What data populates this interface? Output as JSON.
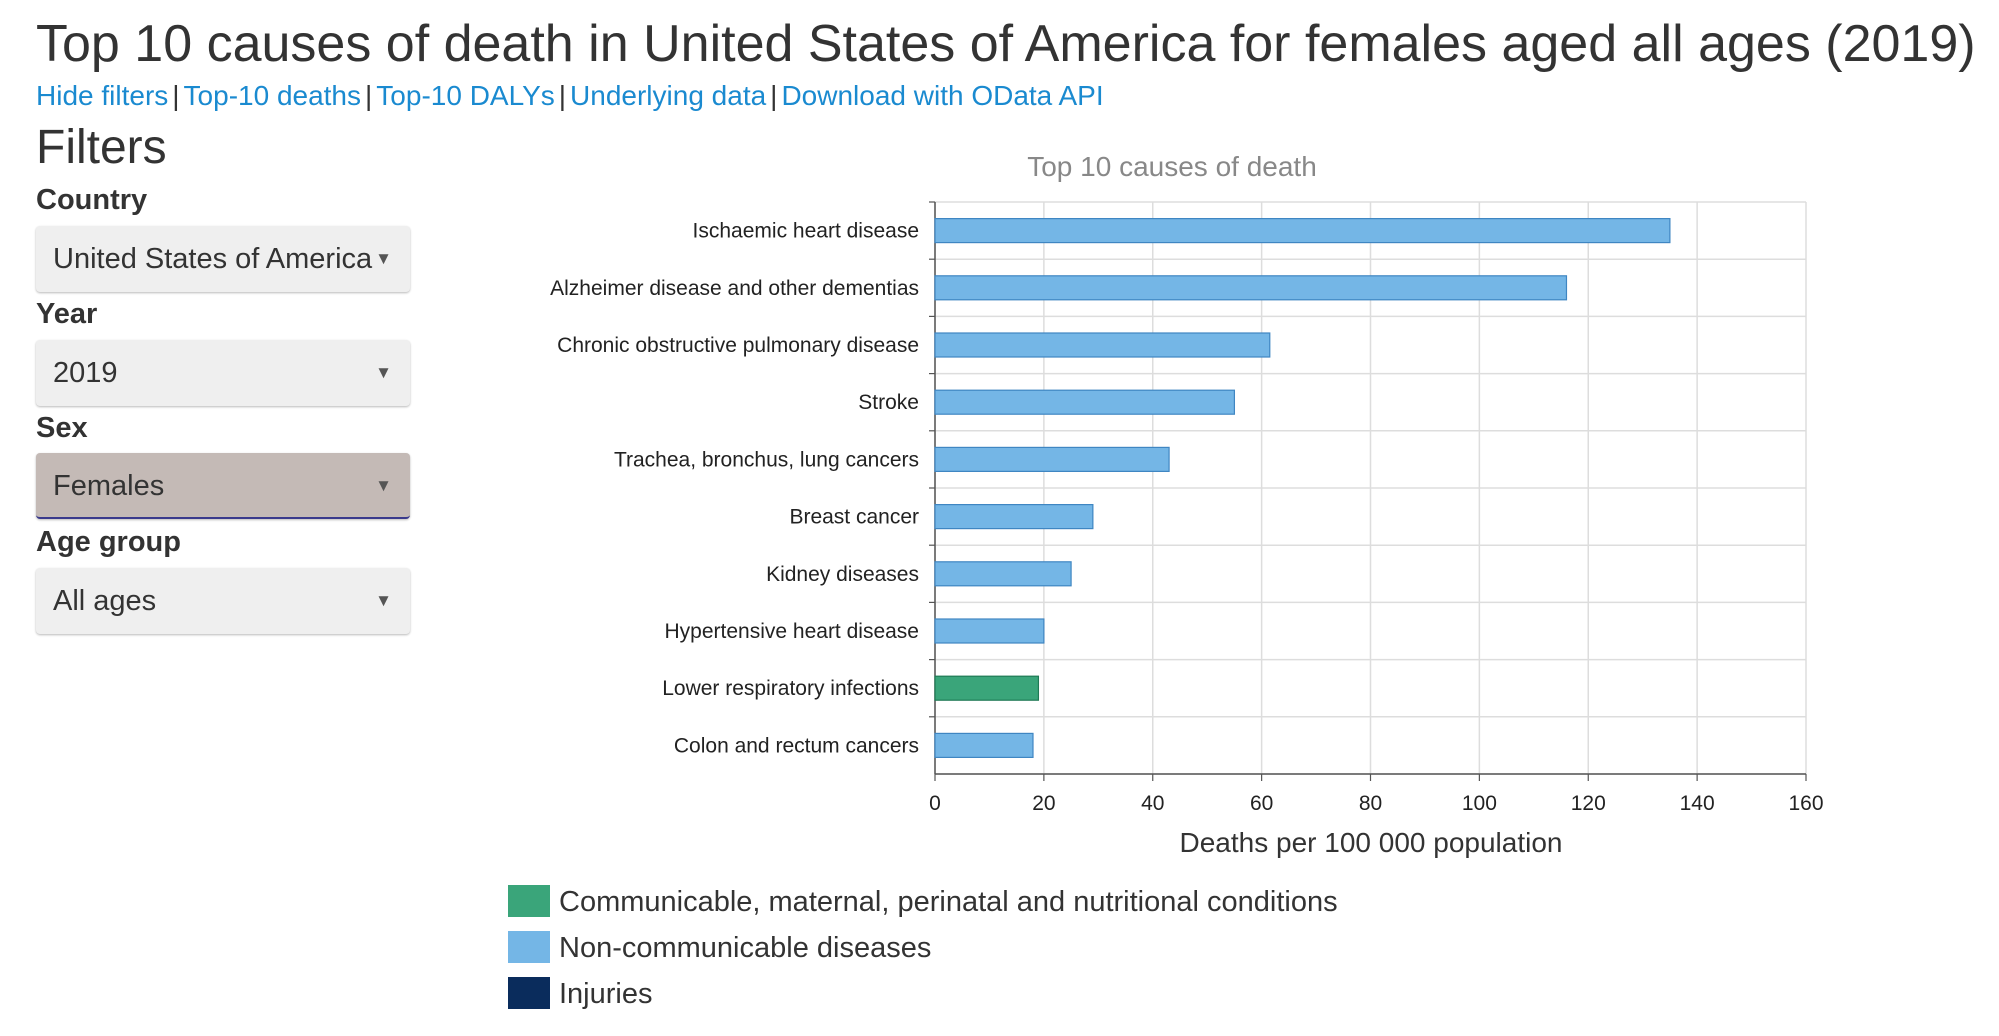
{
  "page": {
    "title": "Top 10 causes of death in United States of America for females aged all ages (2019)"
  },
  "nav": {
    "links": [
      "Hide filters",
      "Top-10 deaths",
      "Top-10 DALYs",
      "Underlying data",
      "Download with OData API"
    ],
    "separator": "|"
  },
  "filters": {
    "heading": "Filters",
    "country": {
      "label": "Country",
      "value": "United States of America"
    },
    "year": {
      "label": "Year",
      "value": "2019"
    },
    "sex": {
      "label": "Sex",
      "value": "Females"
    },
    "age_group": {
      "label": "Age group",
      "value": "All ages"
    },
    "arrow_icon": "triangle-down-icon"
  },
  "colors": {
    "communicable": "#3aa57a",
    "noncommunicable": "#74b6e6",
    "injuries": "#0a2c5c",
    "link": "#1a8ad0"
  },
  "chart_data": {
    "type": "bar",
    "orientation": "horizontal",
    "title": "Top 10 causes of death",
    "xlabel": "Deaths per 100 000 population",
    "ylabel": "",
    "xlim": [
      0,
      160
    ],
    "xticks": [
      0,
      20,
      40,
      60,
      80,
      100,
      120,
      140,
      160
    ],
    "grid": true,
    "categories": [
      "Ischaemic heart disease",
      "Alzheimer disease and other dementias",
      "Chronic obstructive pulmonary disease",
      "Stroke",
      "Trachea, bronchus, lung cancers",
      "Breast cancer",
      "Kidney diseases",
      "Hypertensive heart disease",
      "Lower respiratory infections",
      "Colon and rectum cancers"
    ],
    "values": [
      135,
      116,
      61.5,
      55,
      43,
      29,
      25,
      20,
      19,
      18
    ],
    "groups": [
      "noncommunicable",
      "noncommunicable",
      "noncommunicable",
      "noncommunicable",
      "noncommunicable",
      "noncommunicable",
      "noncommunicable",
      "noncommunicable",
      "communicable",
      "noncommunicable"
    ],
    "legend": [
      {
        "key": "communicable",
        "label": "Communicable, maternal, perinatal and nutritional conditions"
      },
      {
        "key": "noncommunicable",
        "label": "Non-communicable diseases"
      },
      {
        "key": "injuries",
        "label": "Injuries"
      }
    ],
    "legend_position": "bottom"
  }
}
